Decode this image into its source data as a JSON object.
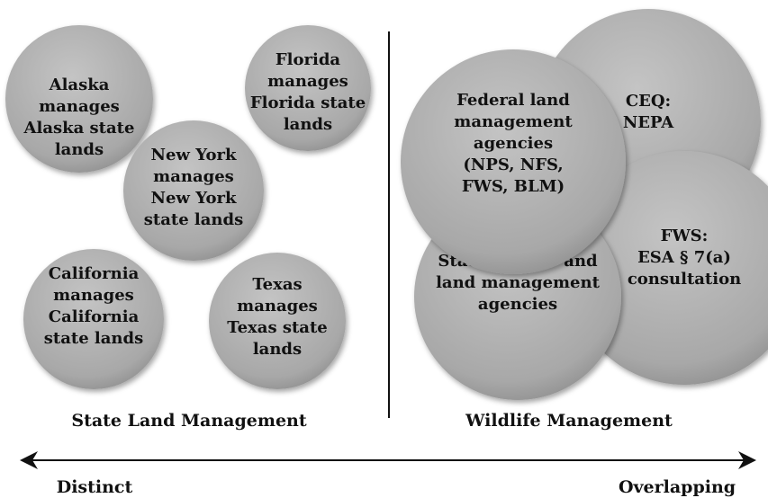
{
  "circles": [
    {
      "lines": [
        "Alaska",
        "manages",
        "Alaska state",
        "lands"
      ]
    },
    {
      "lines": [
        "Florida",
        "manages",
        "Florida state",
        "lands"
      ]
    },
    {
      "lines": [
        "New York",
        "manages",
        "New York",
        "state lands"
      ]
    },
    {
      "lines": [
        "California",
        "manages",
        "California",
        "state lands"
      ]
    },
    {
      "lines": [
        "Texas",
        "manages",
        "Texas state",
        "lands"
      ]
    },
    {
      "lines": [
        "CEQ:",
        "NEPA"
      ]
    },
    {
      "lines": [
        "FWS:",
        "ESA § 7(a)",
        "consultation"
      ]
    },
    {
      "lines": [
        "State wildlife and",
        "land management",
        "agencies"
      ]
    },
    {
      "lines": [
        "Federal land",
        "management",
        "agencies",
        "(NPS, NFS,",
        "FWS, BLM)"
      ]
    }
  ],
  "left_label": "State Land Management",
  "right_label": "Wildlife Management",
  "axis": {
    "left": "Distinct",
    "right": "Overlapping"
  }
}
